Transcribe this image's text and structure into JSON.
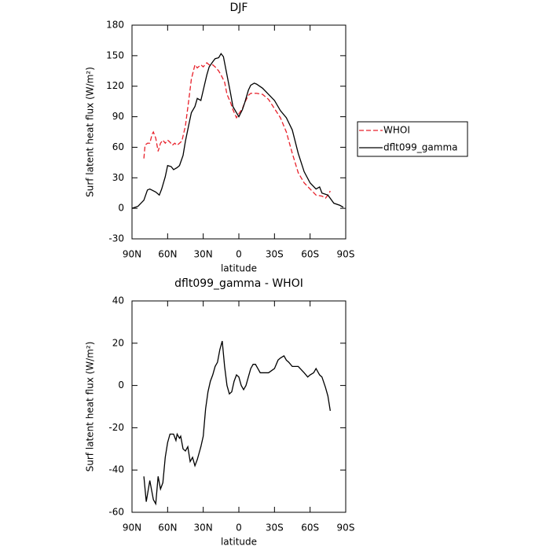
{
  "chart_data": [
    {
      "type": "line",
      "title": "DJF",
      "xlabel": "latitude",
      "ylabel": "Surf latent heat flux (W/m²)",
      "xlim": [
        90,
        -90
      ],
      "xticks": [
        {
          "value": 90,
          "label": "90N"
        },
        {
          "value": 60,
          "label": "60N"
        },
        {
          "value": 30,
          "label": "30N"
        },
        0,
        {
          "value": -30,
          "label": "30S"
        },
        {
          "value": -60,
          "label": "60S"
        },
        {
          "value": -90,
          "label": "90S"
        }
      ],
      "ylim": [
        -30,
        180
      ],
      "yticks": [
        -30,
        0,
        30,
        60,
        90,
        120,
        150,
        180
      ],
      "legend_position": "right",
      "series": [
        {
          "name": "WHOI",
          "color": "#e8202a",
          "linestyle": "dashed",
          "x": [
            80,
            79,
            77,
            75,
            73,
            72,
            70,
            68,
            66,
            64,
            62,
            60,
            58,
            56,
            54,
            52,
            50,
            48,
            45,
            42,
            40,
            37,
            35,
            32,
            30,
            27,
            25,
            22,
            20,
            17,
            15,
            12,
            10,
            7,
            5,
            2,
            0,
            -3,
            -5,
            -8,
            -10,
            -15,
            -20,
            -25,
            -30,
            -35,
            -40,
            -45,
            -50,
            -55,
            -60,
            -65,
            -70,
            -73,
            -75,
            -77
          ],
          "values": [
            49,
            62,
            64,
            64,
            73,
            75,
            69,
            56,
            64,
            67,
            64,
            67,
            65,
            62,
            64,
            62,
            64,
            66,
            81,
            108,
            127,
            141,
            138,
            141,
            139,
            143,
            141,
            141,
            139,
            135,
            131,
            124,
            112,
            104,
            97,
            89,
            93,
            98,
            104,
            111,
            113,
            113,
            112,
            107,
            98,
            89,
            75,
            54,
            35,
            25,
            19,
            13,
            12,
            10,
            13,
            17
          ]
        },
        {
          "name": "dflt099_gamma",
          "color": "#000000",
          "linestyle": "solid",
          "x": [
            90,
            85,
            80,
            77,
            75,
            70,
            67,
            65,
            62,
            60,
            57,
            55,
            52,
            50,
            47,
            45,
            42,
            40,
            37,
            35,
            32,
            30,
            27,
            25,
            22,
            20,
            17,
            15,
            13,
            10,
            7,
            5,
            2,
            0,
            -3,
            -5,
            -8,
            -10,
            -13,
            -15,
            -20,
            -25,
            -30,
            -35,
            -40,
            -45,
            -50,
            -55,
            -60,
            -65,
            -68,
            -70,
            -75,
            -80,
            -85,
            -88
          ],
          "values": [
            0,
            2,
            8,
            18,
            19,
            16,
            13,
            19,
            31,
            42,
            41,
            38,
            40,
            42,
            52,
            66,
            83,
            94,
            100,
            108,
            106,
            116,
            131,
            139,
            144,
            147,
            148,
            152,
            149,
            131,
            113,
            100,
            94,
            90,
            97,
            104,
            116,
            121,
            123,
            122,
            118,
            112,
            106,
            96,
            89,
            77,
            54,
            36,
            25,
            19,
            21,
            15,
            13,
            5,
            3,
            1
          ]
        }
      ]
    },
    {
      "type": "line",
      "title": "dflt099_gamma - WHOI",
      "xlabel": "latitude",
      "ylabel": "Surf latent heat flux (W/m²)",
      "xlim": [
        90,
        -90
      ],
      "xticks": [
        {
          "value": 90,
          "label": "90N"
        },
        {
          "value": 60,
          "label": "60N"
        },
        {
          "value": 30,
          "label": "30N"
        },
        0,
        {
          "value": -30,
          "label": "30S"
        },
        {
          "value": -60,
          "label": "60S"
        },
        {
          "value": -90,
          "label": "90S"
        }
      ],
      "ylim": [
        -60,
        40
      ],
      "yticks": [
        -60,
        -40,
        -20,
        0,
        20,
        40
      ],
      "series": [
        {
          "color": "#000000",
          "linestyle": "solid",
          "x": [
            80,
            78,
            75,
            72,
            70,
            68,
            66,
            64,
            62,
            60,
            58,
            55,
            53,
            52,
            50,
            49,
            47,
            45,
            43,
            41,
            39,
            37,
            35,
            32,
            30,
            28,
            26,
            24,
            22,
            20,
            18,
            16,
            14,
            12,
            10,
            8,
            6,
            4,
            2,
            0,
            -2,
            -4,
            -6,
            -8,
            -10,
            -12,
            -14,
            -16,
            -18,
            -20,
            -25,
            -30,
            -33,
            -35,
            -38,
            -40,
            -42,
            -45,
            -50,
            -55,
            -58,
            -60,
            -63,
            -65,
            -68,
            -70,
            -73,
            -75,
            -77
          ],
          "values": [
            -43,
            -55,
            -45,
            -54,
            -56,
            -43,
            -49,
            -46,
            -34,
            -27,
            -23,
            -23,
            -26,
            -23,
            -25,
            -24,
            -30,
            -31,
            -29,
            -36,
            -34,
            -38,
            -35,
            -29,
            -24,
            -11,
            -3,
            2,
            5,
            9,
            11,
            17,
            21,
            9,
            0,
            -4,
            -3,
            2,
            5,
            4,
            0,
            -2,
            0,
            4,
            8,
            10,
            10,
            8,
            6,
            6,
            6,
            8,
            12,
            13,
            14,
            12,
            11,
            9,
            9,
            6,
            4,
            5,
            6,
            8,
            5,
            4,
            -1,
            -5,
            -12
          ]
        }
      ]
    }
  ]
}
